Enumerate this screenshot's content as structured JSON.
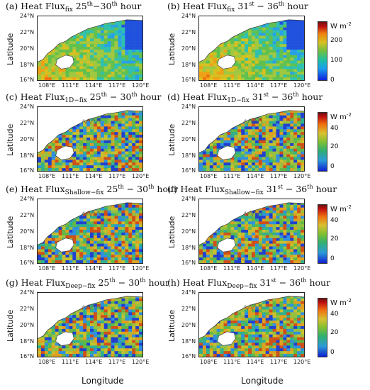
{
  "panels": [
    {
      "letter": "(a) Heat Flux",
      "sub": "fix",
      "range_a": "25",
      "sup_a": "th",
      "range_b": "30",
      "sup_b": "th",
      "sep": "−",
      "suffix": " hour",
      "colorbar": "a"
    },
    {
      "letter": "(b) Heat Flux",
      "sub": "fix",
      "range_a": "31",
      "sup_a": "st",
      "range_b": "36",
      "sup_b": "th",
      "sep": " − ",
      "suffix": " hour",
      "colorbar": "a"
    },
    {
      "letter": "(c) Heat Flux",
      "sub": "1D−fix",
      "range_a": "25",
      "sup_a": "th",
      "range_b": "30",
      "sup_b": "th",
      "sep": " − ",
      "suffix": " hour",
      "colorbar": "b"
    },
    {
      "letter": "(d) Heat Flux",
      "sub": "1D−fix",
      "range_a": "31",
      "sup_a": "st",
      "range_b": "36",
      "sup_b": "th",
      "sep": " − ",
      "suffix": " hour",
      "colorbar": "b"
    },
    {
      "letter": "(e) Heat Flux",
      "sub": "Shallow−fix",
      "range_a": "25",
      "sup_a": "th",
      "range_b": "30",
      "sup_b": "th",
      "sep": " − ",
      "suffix": " hour",
      "colorbar": "b"
    },
    {
      "letter": "(f) Heat Flux",
      "sub": "Shallow−fix",
      "range_a": "31",
      "sup_a": "st",
      "range_b": "36",
      "sup_b": "th",
      "sep": " − ",
      "suffix": " hour",
      "colorbar": "b"
    },
    {
      "letter": "(g) Heat Flux",
      "sub": "Deep−fix",
      "range_a": "25",
      "sup_a": "th",
      "range_b": "30",
      "sup_b": "th",
      "sep": " − ",
      "suffix": " hour",
      "colorbar": "b"
    },
    {
      "letter": "(h) Heat Flux",
      "sub": "Deep−fix",
      "range_a": "31",
      "sup_a": "st",
      "range_b": "36",
      "sup_b": "th",
      "sep": " − ",
      "suffix": " hour",
      "colorbar": "b"
    }
  ],
  "lat_ticks": [
    "24°N",
    "22°N",
    "20°N",
    "18°N",
    "16°N"
  ],
  "lon_ticks": [
    "108°E",
    "111°E",
    "114°E",
    "117°E",
    "120°E"
  ],
  "ylabel": "Latitude",
  "xlabel": "Longitude",
  "colorbars": {
    "a": {
      "unit": "W m",
      "unit_sup": "-2",
      "ticks": [
        "200",
        "100",
        "0"
      ]
    },
    "b": {
      "unit": "W m",
      "unit_sup": "-2",
      "ticks": [
        "40",
        "20",
        "0"
      ]
    }
  }
}
